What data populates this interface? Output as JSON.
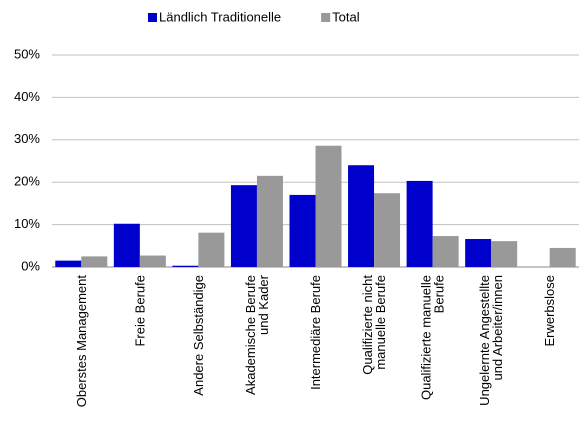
{
  "chart_data": {
    "type": "bar",
    "categories": [
      "Oberstes Management",
      "Freie Berufe",
      "Andere Selbständige",
      "Akademische Berufe\nund Kader",
      "Intermediäre Berufe",
      "Qualifizierte nicht\nmanuelle Berufe",
      "Qualifizierte manuelle\nBerufe",
      "Ungelernte Angestellte\nund Arbeiter/innen",
      "Erwerbslose"
    ],
    "series": [
      {
        "name": "Ländlich Traditionelle",
        "color": "#0000cc",
        "values": [
          1.5,
          10.2,
          0.3,
          19.3,
          17.0,
          24.0,
          20.3,
          6.6,
          0
        ]
      },
      {
        "name": "Total",
        "color": "#999999",
        "values": [
          2.5,
          2.7,
          8.1,
          21.5,
          28.6,
          17.4,
          7.3,
          6.1,
          4.5
        ]
      }
    ],
    "ylim": [
      0,
      50
    ],
    "yticks": [
      {
        "value": 0,
        "label": "0%"
      },
      {
        "value": 10,
        "label": "10%"
      },
      {
        "value": 20,
        "label": "20%"
      },
      {
        "value": 30,
        "label": "30%"
      },
      {
        "value": 40,
        "label": "40%"
      },
      {
        "value": 50,
        "label": "50%"
      }
    ],
    "grid": true,
    "legend": "top"
  }
}
